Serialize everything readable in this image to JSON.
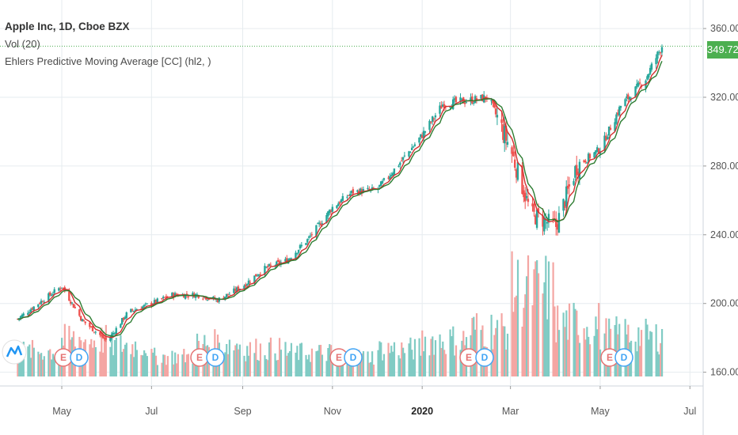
{
  "legend": {
    "title": "Apple Inc, 1D, Cboe BZX",
    "vol": "Vol (20)",
    "indicator": "Ehlers Predictive Moving Average [CC] (hl2, )"
  },
  "colors": {
    "up": "#26a69a",
    "down": "#ef5350",
    "vol_up": "#80cbc4",
    "vol_down": "#f4a6a3",
    "ma_red": "#d32f2f",
    "ma_green": "#2e7d32",
    "price_line": "#4caf50",
    "grid": "#e6ecef",
    "earnings": "#e57373",
    "dividend": "#42a5f5"
  },
  "chart_data": {
    "type": "line",
    "y_axis": {
      "ticks": [
        "360.00",
        "320.00",
        "280.00",
        "240.00",
        "200.00",
        "160.00"
      ],
      "range": [
        152,
        372
      ]
    },
    "x_axis": {
      "ticks": [
        "May",
        "Jul",
        "Sep",
        "Nov",
        "2020",
        "Mar",
        "May",
        "Jul"
      ]
    },
    "last_price": "349.72",
    "series": [
      {
        "type": "candles",
        "x": [
          "2019-04-01",
          "2019-04-15",
          "2019-05-01",
          "2019-05-15",
          "2019-06-01",
          "2019-06-15",
          "2019-07-01",
          "2019-07-15",
          "2019-08-01",
          "2019-08-15",
          "2019-09-01",
          "2019-09-15",
          "2019-10-01",
          "2019-10-15",
          "2019-11-01",
          "2019-11-15",
          "2019-12-01",
          "2019-12-15",
          "2020-01-01",
          "2020-01-15",
          "2020-02-01",
          "2020-02-15",
          "2020-03-01",
          "2020-03-15",
          "2020-04-01",
          "2020-04-15",
          "2020-05-01",
          "2020-05-15",
          "2020-06-01",
          "2020-06-12"
        ],
        "close": [
          191,
          200,
          210,
          190,
          178,
          195,
          200,
          205,
          205,
          202,
          210,
          220,
          225,
          237,
          256,
          265,
          266,
          280,
          298,
          316,
          318,
          320,
          290,
          252,
          245,
          280,
          290,
          315,
          331,
          350
        ]
      },
      {
        "name": "Ehlers PMA fast",
        "type": "line",
        "color": "red"
      },
      {
        "name": "Ehlers PMA slow",
        "type": "line",
        "color": "green"
      },
      {
        "name": "Vol (20)",
        "type": "bar",
        "x": [
          "2019-04-01",
          "2019-05-01",
          "2019-06-01",
          "2019-07-01",
          "2019-08-01",
          "2019-09-01",
          "2019-10-01",
          "2019-11-01",
          "2019-12-01",
          "2020-01-01",
          "2020-02-01",
          "2020-03-01",
          "2020-04-01",
          "2020-05-01",
          "2020-06-01"
        ],
        "values": [
          28,
          40,
          34,
          22,
          36,
          30,
          26,
          22,
          30,
          40,
          52,
          95,
          58,
          46,
          44
        ]
      }
    ],
    "events": [
      "E",
      "D",
      "E",
      "D",
      "E",
      "D",
      "E",
      "D",
      "E",
      "D"
    ],
    "grid": true
  }
}
